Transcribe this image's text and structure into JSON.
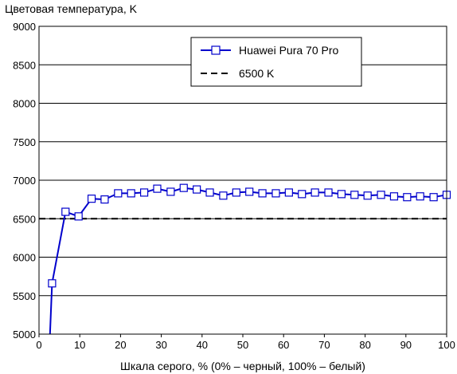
{
  "chart_data": {
    "type": "line",
    "ylabel": "Цветовая температура, K",
    "xlabel": "Шкала серого, % (0% – черный, 100% – белый)",
    "xlim": [
      0,
      100
    ],
    "ylim": [
      5000,
      9000
    ],
    "xticks": [
      0,
      10,
      20,
      30,
      40,
      50,
      60,
      70,
      80,
      90,
      100
    ],
    "yticks": [
      5000,
      5500,
      6000,
      6500,
      7000,
      7500,
      8000,
      8500,
      9000
    ],
    "grid": "horizontal",
    "legend_position": "top-right",
    "series": [
      {
        "name": "Huawei Pura 70 Pro",
        "color": "#0000cc",
        "marker": "open-square",
        "x": [
          2.7,
          3.2,
          6.5,
          9.7,
          12.9,
          16.1,
          19.4,
          22.6,
          25.8,
          29.0,
          32.3,
          35.5,
          38.7,
          41.9,
          45.2,
          48.4,
          51.6,
          54.8,
          58.1,
          61.3,
          64.5,
          67.7,
          71.0,
          74.2,
          77.4,
          80.6,
          83.9,
          87.1,
          90.3,
          93.5,
          96.8,
          100.0
        ],
        "values": [
          5000,
          5660,
          6590,
          6530,
          6760,
          6750,
          6830,
          6830,
          6840,
          6890,
          6850,
          6900,
          6880,
          6840,
          6800,
          6840,
          6850,
          6830,
          6830,
          6840,
          6820,
          6840,
          6840,
          6820,
          6810,
          6800,
          6810,
          6790,
          6780,
          6790,
          6780,
          6810
        ]
      },
      {
        "name": "6500 K",
        "color": "#000000",
        "style": "dashed",
        "value": 6500
      }
    ]
  }
}
